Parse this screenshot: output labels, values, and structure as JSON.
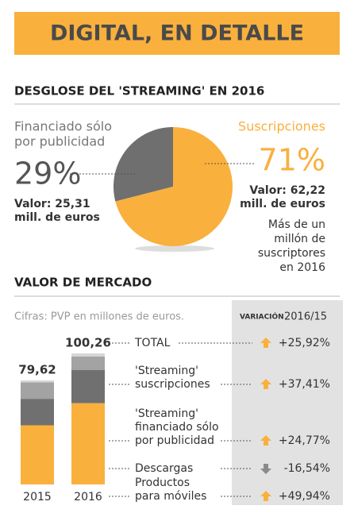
{
  "title": "DIGITAL, EN DETALLE",
  "chart_data": [
    {
      "type": "pie",
      "title": "DESGLOSE DEL 'STREAMING' EN 2016",
      "categories": [
        [
          "Financiado sólo",
          "por publicidad"
        ],
        [
          "Suscripciones"
        ]
      ],
      "values": [
        29,
        71
      ],
      "value_labels": [
        "29%",
        "71%"
      ],
      "colors": [
        "#6f6f6f",
        "#f9b03d"
      ],
      "amount_labels": [
        [
          "Valor: 25,31",
          "mill. de euros"
        ],
        [
          "Valor: 62,22",
          "mill. de euros"
        ]
      ],
      "note": [
        "Más de un",
        "millón de",
        "suscriptores",
        "en 2016"
      ]
    },
    {
      "type": "stacked-bar",
      "title": "VALOR DE MERCADO",
      "subtitle": "Cifras: PVP en millones de euros.",
      "categories": [
        "2015",
        "2016"
      ],
      "totals": [
        79.62,
        100.26
      ],
      "total_labels": [
        "79,62",
        "100,26"
      ],
      "total_name": "TOTAL",
      "total_variation": 25.92,
      "total_variation_label": "+25,92%",
      "variation_title": [
        "VARIACIÓN",
        "2016/15"
      ],
      "series": [
        {
          "name": [
            "'Streaming'",
            "suscripciones"
          ],
          "color": "#f9b03d",
          "values": [
            45.28,
            62.22
          ],
          "variation": 37.41,
          "variation_label": "+37,41%"
        },
        {
          "name": [
            "'Streaming'",
            "financiado sólo",
            "por publicidad"
          ],
          "color": "#707070",
          "values": [
            20.29,
            25.31
          ],
          "variation": 24.77,
          "variation_label": "+24,77%"
        },
        {
          "name": [
            "Descargas"
          ],
          "color": "#a3a3a3",
          "values": [
            12.54,
            10.47
          ],
          "variation": -16.54,
          "variation_label": "-16,54%"
        },
        {
          "name": [
            "Productos",
            "para móviles"
          ],
          "color": "#d6d6d6",
          "values": [
            1.51,
            2.26
          ],
          "variation": 49.94,
          "variation_label": "+49,94%"
        }
      ]
    }
  ]
}
